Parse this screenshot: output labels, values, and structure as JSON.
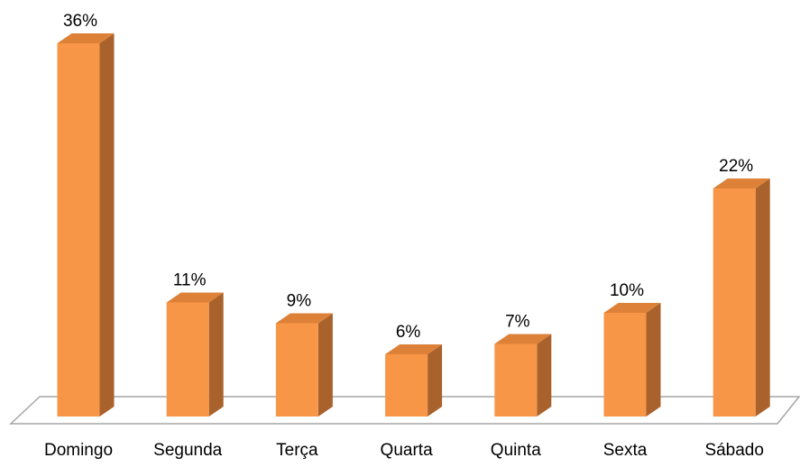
{
  "chart_data": {
    "type": "bar3d",
    "categories": [
      "Domingo",
      "Segunda",
      "Terça",
      "Quarta",
      "Quinta",
      "Sexta",
      "Sábado"
    ],
    "values": [
      36,
      11,
      9,
      6,
      7,
      10,
      22
    ],
    "value_labels": [
      "36%",
      "11%",
      "9%",
      "6%",
      "7%",
      "10%",
      "22%"
    ],
    "color": "#f79646"
  }
}
